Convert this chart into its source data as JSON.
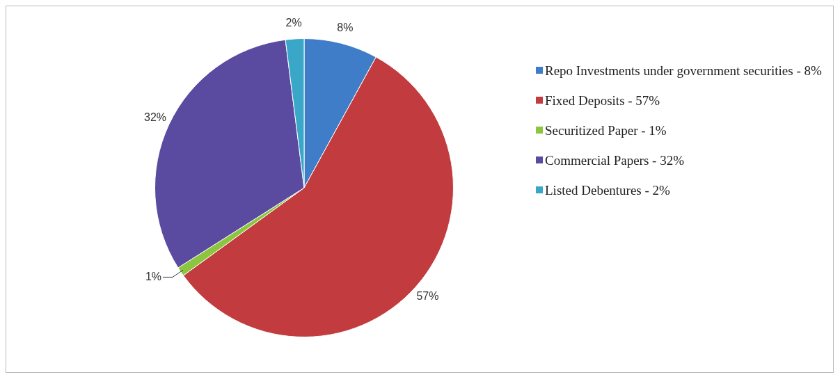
{
  "chart_data": {
    "type": "pie",
    "categories": [
      "Repo Investments under government securities - 8%",
      "Fixed Deposits - 57%",
      "Securitized Paper - 1%",
      "Commercial Papers - 32%",
      "Listed Debentures - 2%"
    ],
    "values": [
      8,
      57,
      1,
      32,
      2
    ],
    "colors": [
      "#3f7dc8",
      "#c23b3e",
      "#8cc63f",
      "#5a4ba0",
      "#3aa7c9"
    ],
    "value_labels": [
      "8%",
      "57%",
      "1%",
      "32%",
      "2%"
    ],
    "legend": "right"
  }
}
